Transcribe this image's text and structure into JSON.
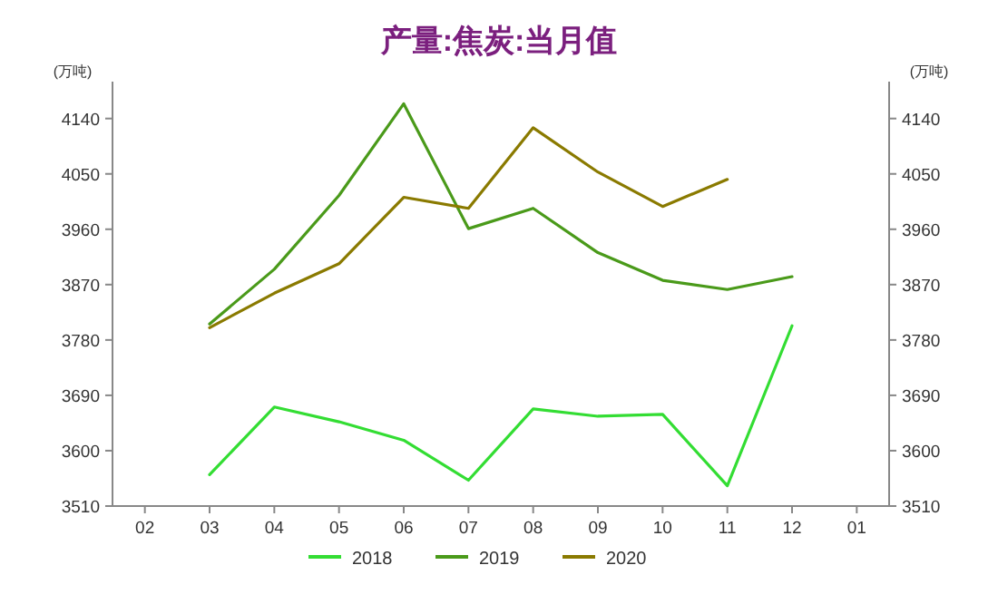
{
  "chart_data": {
    "type": "line",
    "title": "产量:焦炭:当月值",
    "ylabel": "(万吨)",
    "y2label": "(万吨)",
    "categories": [
      "02",
      "03",
      "04",
      "05",
      "06",
      "07",
      "08",
      "09",
      "10",
      "11",
      "12",
      "01"
    ],
    "series": [
      {
        "name": "2018",
        "color": "#33dd33",
        "values": [
          null,
          3561,
          3671,
          3647,
          3617,
          3552,
          3668,
          3656,
          3659,
          3543,
          3803,
          null
        ]
      },
      {
        "name": "2019",
        "color": "#4a9a1a",
        "values": [
          null,
          3806,
          3895,
          4015,
          4164,
          3961,
          3994,
          3922,
          3877,
          3862,
          3883,
          null
        ]
      },
      {
        "name": "2020",
        "color": "#8a7a00",
        "values": [
          null,
          3800,
          3856,
          3904,
          4012,
          3994,
          4125,
          4053,
          3997,
          4041,
          null,
          null
        ]
      }
    ],
    "ylim": [
      3510,
      4200
    ],
    "yticks": [
      3510,
      3600,
      3690,
      3780,
      3870,
      3960,
      4050,
      4140
    ],
    "y2lim": [
      3510,
      4200
    ],
    "y2ticks": [
      3510,
      3600,
      3690,
      3780,
      3870,
      3960,
      4050,
      4140
    ],
    "legend": "bottom",
    "grid": false,
    "marker": "none",
    "line_style": "solid"
  }
}
